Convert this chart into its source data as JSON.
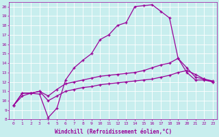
{
  "xlabel": "Windchill (Refroidissement éolien,°C)",
  "bg_color": "#c8eeee",
  "line_color": "#990099",
  "grid_color": "#aadddd",
  "ylim": [
    8,
    20.5
  ],
  "xlim": [
    -0.5,
    23.5
  ],
  "yticks": [
    8,
    9,
    10,
    11,
    12,
    13,
    14,
    15,
    16,
    17,
    18,
    19,
    20
  ],
  "xticks": [
    0,
    1,
    2,
    3,
    4,
    5,
    6,
    7,
    8,
    9,
    10,
    11,
    12,
    13,
    14,
    15,
    16,
    17,
    18,
    19,
    20,
    21,
    22,
    23
  ],
  "line1_x": [
    0,
    1,
    2,
    3,
    4,
    5,
    6,
    7,
    8,
    9,
    10,
    11,
    12,
    13,
    14,
    15,
    16,
    17,
    18,
    19,
    20,
    21,
    22,
    23
  ],
  "line1_y": [
    9.5,
    10.8,
    10.8,
    10.7,
    8.2,
    9.2,
    12.2,
    13.5,
    14.3,
    15.0,
    16.5,
    17.0,
    18.0,
    18.3,
    20.0,
    20.1,
    20.2,
    19.5,
    18.8,
    14.5,
    13.0,
    12.2,
    12.2,
    12.0
  ],
  "line2_x": [
    0,
    1,
    2,
    3,
    4,
    5,
    6,
    7,
    8,
    9,
    10,
    11,
    12,
    13,
    14,
    15,
    16,
    17,
    18,
    19,
    20,
    21,
    22,
    23
  ],
  "line2_y": [
    9.5,
    10.8,
    10.8,
    11.0,
    10.5,
    11.2,
    11.8,
    12.0,
    12.2,
    12.4,
    12.6,
    12.7,
    12.8,
    12.9,
    13.0,
    13.2,
    13.5,
    13.8,
    14.0,
    14.5,
    13.5,
    12.5,
    12.3,
    12.1
  ],
  "line3_x": [
    0,
    1,
    2,
    3,
    4,
    5,
    6,
    7,
    8,
    9,
    10,
    11,
    12,
    13,
    14,
    15,
    16,
    17,
    18,
    19,
    20,
    21,
    22,
    23
  ],
  "line3_y": [
    9.5,
    10.5,
    10.8,
    11.0,
    10.0,
    10.5,
    11.0,
    11.2,
    11.4,
    11.5,
    11.7,
    11.8,
    11.9,
    12.0,
    12.1,
    12.2,
    12.3,
    12.5,
    12.7,
    13.0,
    13.2,
    12.8,
    12.3,
    12.0
  ]
}
